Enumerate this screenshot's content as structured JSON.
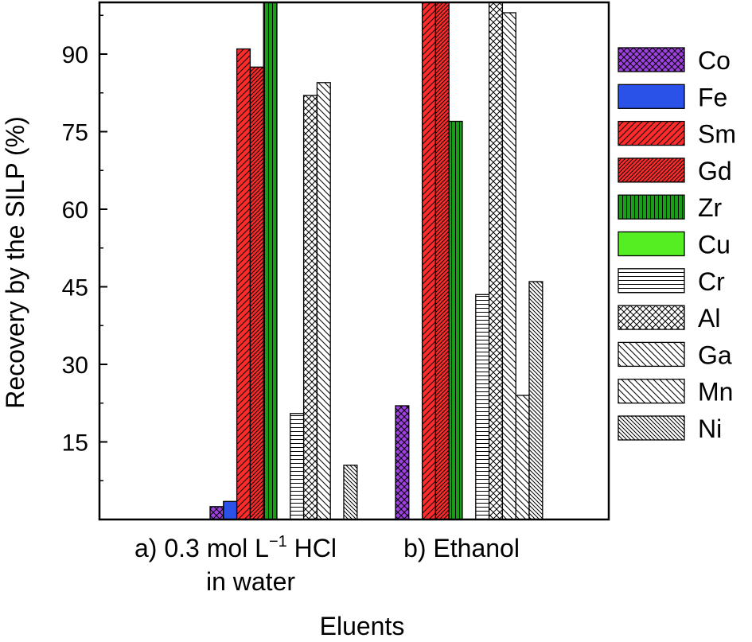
{
  "chart_data": {
    "type": "bar",
    "xlabel": "Eluents",
    "ylabel": "Recovery by the SILP (%)",
    "ylim": [
      0,
      100
    ],
    "yticks": [
      15,
      30,
      45,
      60,
      75,
      90
    ],
    "grid": false,
    "legend_position": "right",
    "categories": [
      {
        "lines": [
          [
            "a) 0.3 mol L",
            "−1",
            " HCl"
          ],
          [
            "in water"
          ]
        ]
      },
      {
        "lines": [
          [
            "b) Ethanol"
          ]
        ]
      }
    ],
    "series": [
      {
        "name": "Co",
        "values": [
          2.5,
          22
        ],
        "color": "#a040e0",
        "pattern": "crosshatch-diag"
      },
      {
        "name": "Fe",
        "values": [
          3.5,
          0
        ],
        "color": "#2a52e8",
        "pattern": "solid"
      },
      {
        "name": "Sm",
        "values": [
          91,
          100
        ],
        "color": "#ff2a2a",
        "pattern": "diag-up-wide"
      },
      {
        "name": "Gd",
        "values": [
          87.5,
          100
        ],
        "color": "#ff2a2a",
        "pattern": "diag-up-dense"
      },
      {
        "name": "Zr",
        "values": [
          100,
          77
        ],
        "color": "#1a9e1a",
        "pattern": "vertical"
      },
      {
        "name": "Cu",
        "values": [
          0,
          0
        ],
        "color": "#55ee22",
        "pattern": "solid"
      },
      {
        "name": "Cr",
        "values": [
          20.5,
          43.5
        ],
        "color": "#ffffff",
        "pattern": "horizontal"
      },
      {
        "name": "Al",
        "values": [
          82,
          100
        ],
        "color": "#ffffff",
        "pattern": "crosshatch-diag"
      },
      {
        "name": "Ga",
        "values": [
          84.5,
          98
        ],
        "color": "#ffffff",
        "pattern": "diag-down-wide"
      },
      {
        "name": "Mn",
        "values": [
          0,
          24
        ],
        "color": "#ffffff",
        "pattern": "diag-down-wide"
      },
      {
        "name": "Ni",
        "values": [
          10.5,
          46
        ],
        "color": "#ffffff",
        "pattern": "diag-down-dense"
      }
    ]
  }
}
